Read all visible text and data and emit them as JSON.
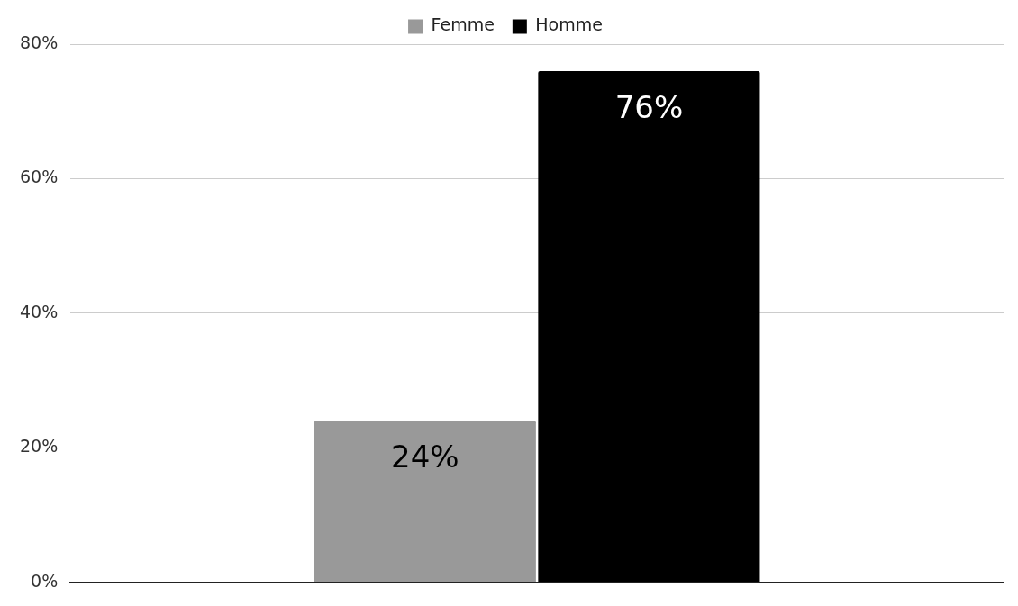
{
  "chart_data": {
    "type": "bar",
    "categories": [
      null
    ],
    "series": [
      {
        "name": "Femme",
        "color": "#999999",
        "values": [
          24
        ],
        "value_labels": [
          "24%"
        ]
      },
      {
        "name": "Homme",
        "color": "#000000",
        "values": [
          76
        ],
        "value_labels": [
          "76%"
        ]
      }
    ],
    "ylim": [
      0,
      80
    ],
    "yticks": [
      {
        "value": 0,
        "label": "0%"
      },
      {
        "value": 20,
        "label": "20%"
      },
      {
        "value": 40,
        "label": "40%"
      },
      {
        "value": 60,
        "label": "60%"
      },
      {
        "value": 80,
        "label": "80%"
      }
    ],
    "grid": "y",
    "legend": "top"
  }
}
